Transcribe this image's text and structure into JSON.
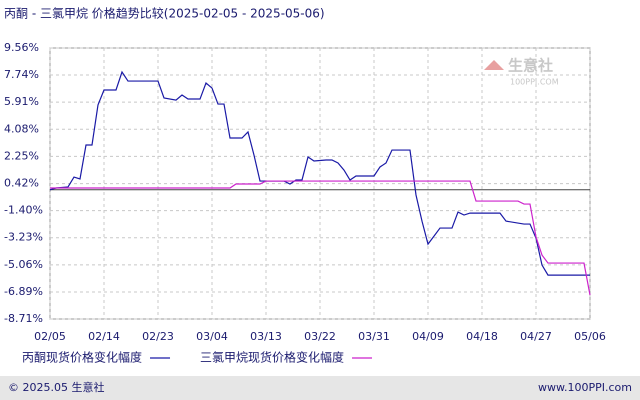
{
  "chart_data": {
    "type": "line",
    "title": "丙酮 - 三氯甲烷 价格趋势比较(2025-02-05 - 2025-05-06)",
    "watermark": "生意社",
    "watermark_sub": "100PPI.COM",
    "footer_left": "© 2025.05 生意社",
    "footer_right": "www.100PPI.com",
    "xlim": [
      0,
      90
    ],
    "xticks": [
      {
        "value": 0,
        "label": "02/05"
      },
      {
        "value": 9,
        "label": "02/14"
      },
      {
        "value": 18,
        "label": "02/23"
      },
      {
        "value": 27,
        "label": "03/04"
      },
      {
        "value": 36,
        "label": "03/13"
      },
      {
        "value": 45,
        "label": "03/22"
      },
      {
        "value": 54,
        "label": "03/31"
      },
      {
        "value": 63,
        "label": "04/09"
      },
      {
        "value": 72,
        "label": "04/18"
      },
      {
        "value": 81,
        "label": "04/27"
      },
      {
        "value": 90,
        "label": "05/06"
      }
    ],
    "ylim": [
      -8.71,
      9.56
    ],
    "yticks": [
      {
        "value": 9.56,
        "label": "9.56%"
      },
      {
        "value": 7.74,
        "label": "7.74%"
      },
      {
        "value": 5.91,
        "label": "5.91%"
      },
      {
        "value": 4.08,
        "label": "4.08%"
      },
      {
        "value": 2.25,
        "label": "2.25%"
      },
      {
        "value": 0.42,
        "label": "0.42%"
      },
      {
        "value": -1.4,
        "label": "-1.40%"
      },
      {
        "value": -3.23,
        "label": "-3.23%"
      },
      {
        "value": -5.06,
        "label": "-5.06%"
      },
      {
        "value": -6.89,
        "label": "-6.89%"
      },
      {
        "value": -8.71,
        "label": "-8.71%"
      }
    ],
    "grid": true,
    "series": [
      {
        "name": "丙酮现货价格变化幅度",
        "color": "#1a1aa6",
        "x": [
          0,
          1,
          3,
          4,
          5,
          6,
          7,
          8,
          9,
          11,
          12,
          13,
          18,
          19,
          21,
          22,
          23,
          25,
          26,
          27,
          28,
          29,
          30,
          32,
          33,
          34,
          35,
          39,
          40,
          41,
          42,
          43,
          44,
          46,
          47,
          48,
          49,
          50,
          51,
          54,
          55,
          56,
          57,
          60,
          61,
          62,
          63,
          64,
          65,
          67,
          68,
          69,
          70,
          75,
          76,
          79,
          80,
          81,
          82,
          83,
          90
        ],
        "values": [
          0,
          0.12,
          0.19,
          0.86,
          0.73,
          3.02,
          3.02,
          5.72,
          6.73,
          6.73,
          7.94,
          7.33,
          7.33,
          6.19,
          6.05,
          6.39,
          6.12,
          6.12,
          7.2,
          6.86,
          5.78,
          5.78,
          3.49,
          3.49,
          3.9,
          2.34,
          0.59,
          0.59,
          0.39,
          0.66,
          0.66,
          2.21,
          1.94,
          2.01,
          2.01,
          1.81,
          1.33,
          0.66,
          0.93,
          0.93,
          1.54,
          1.81,
          2.68,
          2.68,
          -0.35,
          -2.11,
          -3.66,
          -3.12,
          -2.58,
          -2.58,
          -1.5,
          -1.7,
          -1.57,
          -1.57,
          -2.11,
          -2.31,
          -2.31,
          -3.26,
          -5.07,
          -5.75,
          -5.75
        ]
      },
      {
        "name": "三氯甲烷现货价格变化幅度",
        "color": "#cc22cc",
        "x": [
          0,
          30,
          31,
          35,
          36,
          70,
          71,
          78,
          79,
          80,
          81,
          82,
          83,
          89,
          90
        ],
        "values": [
          0.12,
          0.12,
          0.39,
          0.39,
          0.59,
          0.59,
          -0.76,
          -0.76,
          -0.96,
          -0.96,
          -3.18,
          -4.4,
          -4.94,
          -4.94,
          -7.1
        ]
      }
    ]
  }
}
